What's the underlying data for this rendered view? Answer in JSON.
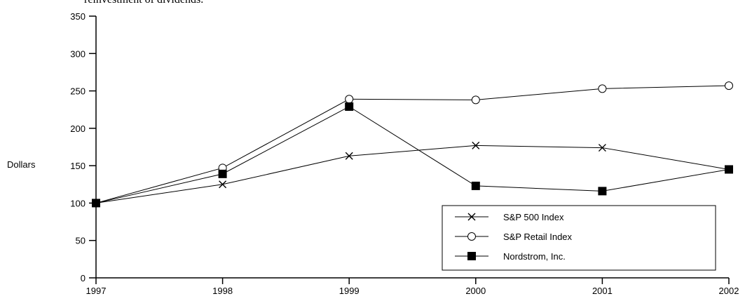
{
  "caption": "reinvestment of dividends.",
  "chart_data": {
    "type": "line",
    "title": "",
    "xlabel": "",
    "ylabel": "Dollars",
    "x": [
      "1997",
      "1998",
      "1999",
      "2000",
      "2001",
      "2002"
    ],
    "ylim": [
      0,
      350
    ],
    "yticks": [
      0,
      50,
      100,
      150,
      200,
      250,
      300,
      350
    ],
    "grid": false,
    "legend": "bottom-right",
    "series": [
      {
        "name": "S&P 500 Index",
        "marker": "x",
        "values": [
          100,
          125,
          163,
          177,
          174,
          145
        ]
      },
      {
        "name": "S&P Retail Index",
        "marker": "open-circle",
        "values": [
          100,
          147,
          239,
          238,
          253,
          257
        ]
      },
      {
        "name": "Nordstrom, Inc.",
        "marker": "filled-square",
        "values": [
          100,
          139,
          229,
          123,
          116,
          145
        ]
      }
    ]
  }
}
